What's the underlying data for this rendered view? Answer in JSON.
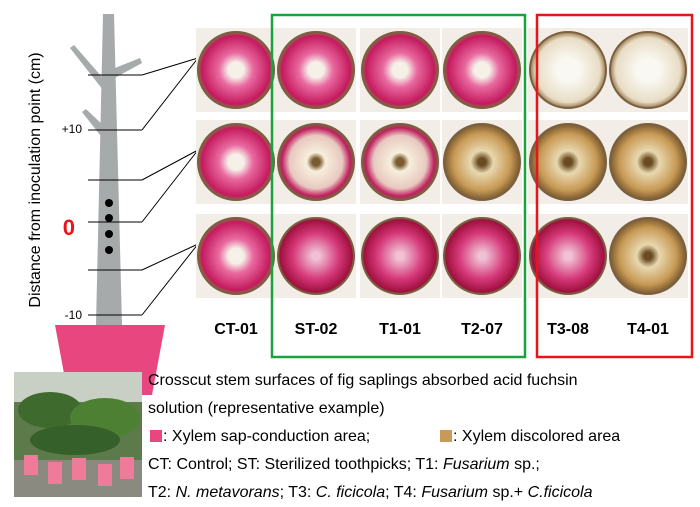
{
  "axis_label": "Distance from inoculation point (cm)",
  "ticks": [
    "+10",
    "0",
    "-10"
  ],
  "columns": [
    "CT-01",
    "ST-02",
    "T1-01",
    "T2-07",
    "T3-08",
    "T4-01"
  ],
  "caption": {
    "lines": [
      "Crosscut stem surfaces of fig saplings absorbed acid fuchsin",
      "solution (representative example)"
    ],
    "legend": [
      ": Xylem sap-conduction area;",
      ": Xylem discolored area"
    ],
    "abbreviations": [
      [
        {
          "text": "CT: Control; ST: Sterilized toothpicks; T1: ",
          "italic": false
        },
        {
          "text": "Fusarium",
          "italic": true
        },
        {
          "text": " sp.;",
          "italic": false
        }
      ],
      [
        {
          "text": "T2: ",
          "italic": false
        },
        {
          "text": "N. metavorans",
          "italic": true
        },
        {
          "text": "; T3: ",
          "italic": false
        },
        {
          "text": "C. ficicola",
          "italic": true
        },
        {
          "text": "; T4: ",
          "italic": false
        },
        {
          "text": "Fusarium",
          "italic": true
        },
        {
          "text": " sp.+ ",
          "italic": false
        },
        {
          "text": "C.ficicola",
          "italic": true
        }
      ]
    ]
  }
}
